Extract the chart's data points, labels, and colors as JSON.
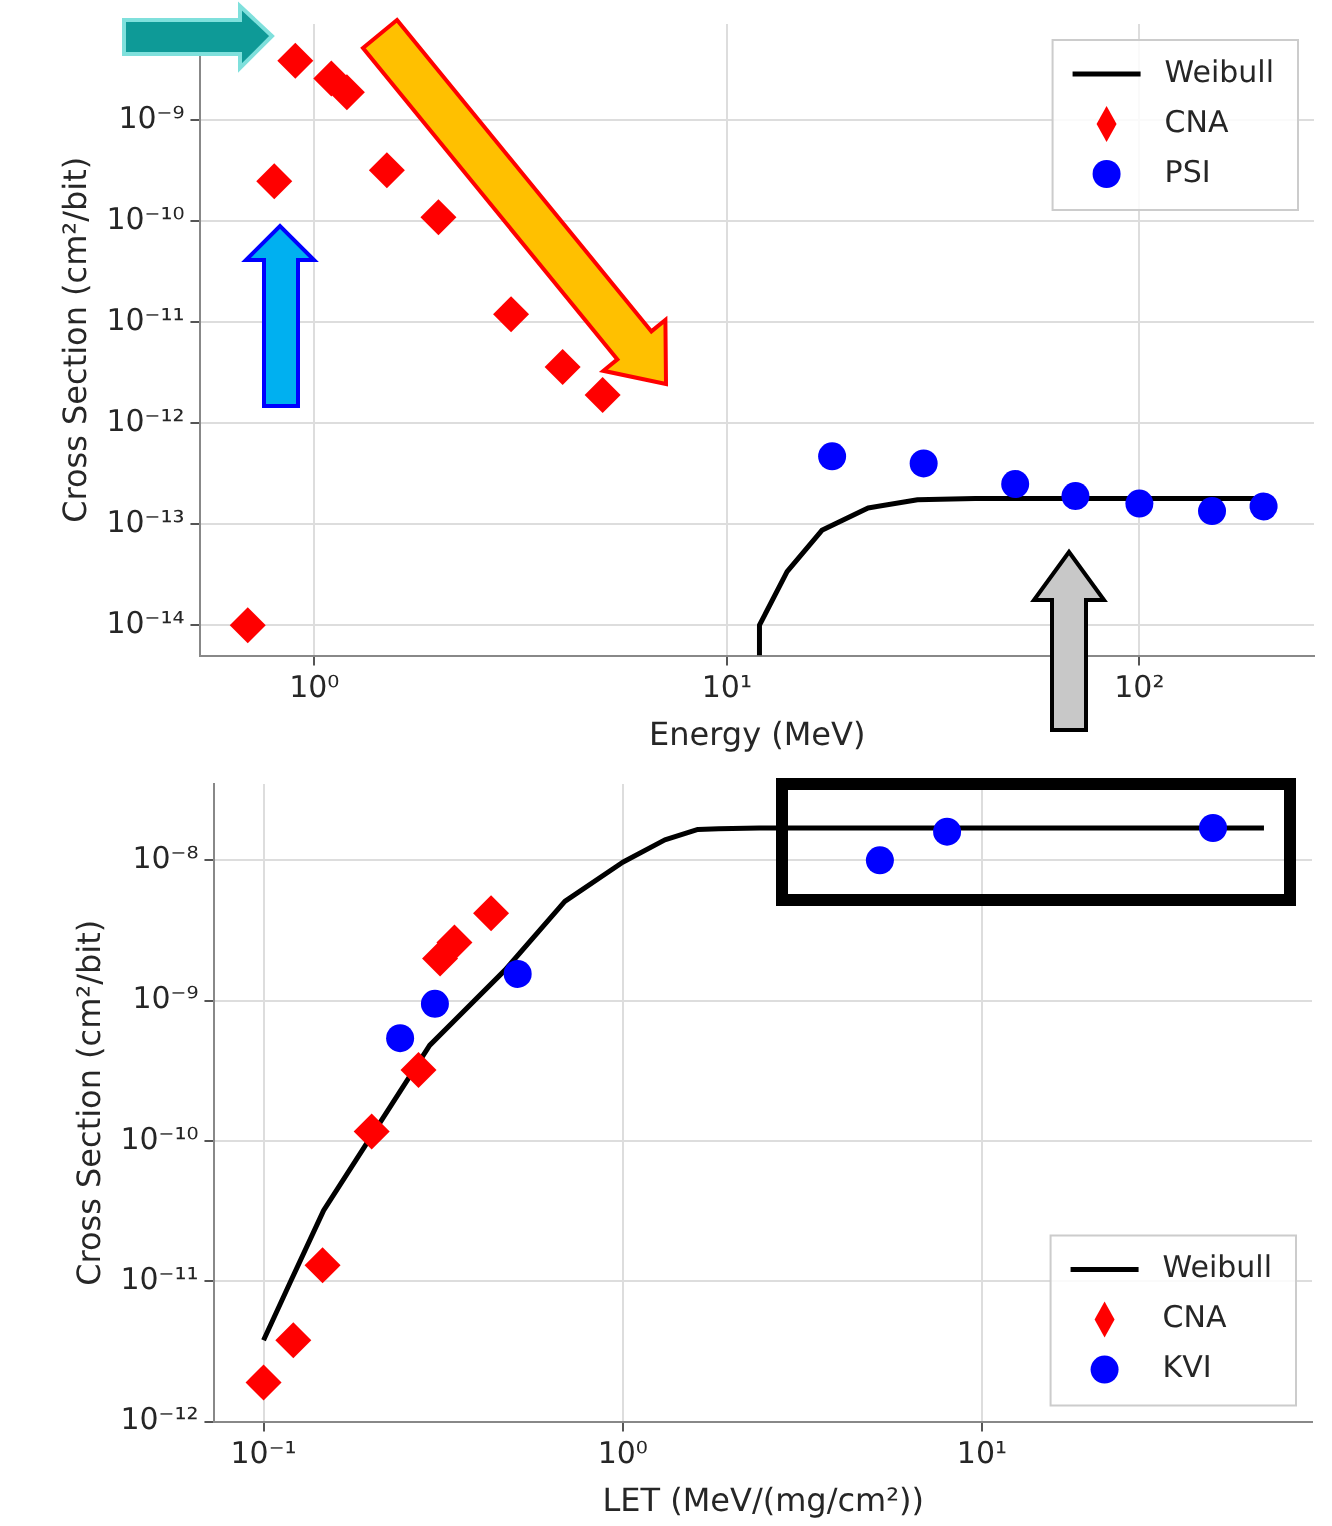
{
  "chart_data": [
    {
      "type": "scatter",
      "xlabel": "Energy (MeV)",
      "ylabel": "Cross Section (cm²/bit)",
      "log": "xy",
      "grid": true,
      "legend": "top right",
      "xlim": [
        0.53,
        265
      ],
      "xticks": [
        {
          "value": 1,
          "label": "10⁰"
        },
        {
          "value": 10,
          "label": "10¹"
        },
        {
          "value": 100,
          "label": "10²"
        }
      ],
      "ylim": [
        5e-15,
        9e-09
      ],
      "yticks": [
        {
          "value": 1e-14,
          "label": "10⁻¹⁴"
        },
        {
          "value": 1e-13,
          "label": "10⁻¹³"
        },
        {
          "value": 1e-12,
          "label": "10⁻¹²"
        },
        {
          "value": 1e-11,
          "label": "10⁻¹¹"
        },
        {
          "value": 1e-10,
          "label": "10⁻¹⁰"
        },
        {
          "value": 1e-09,
          "label": "10⁻⁹"
        }
      ],
      "series": [
        {
          "name": "Weibull",
          "type": "line",
          "color": "#000000",
          "marker": "none",
          "line_style": "solid",
          "x": [
            12,
            12,
            14,
            17,
            22,
            29,
            40,
            190
          ],
          "values": [
            5e-15,
            1e-14,
            3.4e-14,
            8.7e-14,
            1.45e-13,
            1.75e-13,
            1.8e-13,
            1.8e-13
          ]
        },
        {
          "name": "CNA",
          "type": "scatter",
          "color": "#ff0000",
          "marker": "diamond",
          "x": [
            0.69,
            0.8,
            0.9,
            1.1,
            1.2,
            1.5,
            2.0,
            3.0,
            4.0,
            5.0
          ],
          "values": [
            1e-14,
            2.5e-10,
            3.9e-09,
            2.6e-09,
            1.9e-09,
            3.2e-10,
            1.1e-10,
            1.2e-11,
            3.6e-12,
            1.9e-12
          ]
        },
        {
          "name": "PSI",
          "type": "scatter",
          "color": "#0000ff",
          "marker": "circle",
          "x": [
            18,
            30,
            50,
            70,
            100,
            150,
            200
          ],
          "values": [
            4.7e-13,
            4e-13,
            2.5e-13,
            1.9e-13,
            1.6e-13,
            1.35e-13,
            1.5e-13
          ]
        }
      ]
    },
    {
      "type": "scatter",
      "xlabel": "LET (MeV/(mg/cm²))",
      "ylabel": "Cross Section (cm²/bit)",
      "log": "xy",
      "grid": true,
      "legend": "bottom right",
      "xlim": [
        0.073,
        83
      ],
      "xticks": [
        {
          "value": 0.1,
          "label": "10⁻¹"
        },
        {
          "value": 1,
          "label": "10⁰"
        },
        {
          "value": 10,
          "label": "10¹"
        }
      ],
      "ylim": [
        1e-12,
        3.5e-08
      ],
      "yticks": [
        {
          "value": 1e-12,
          "label": "10⁻¹²"
        },
        {
          "value": 1e-11,
          "label": "10⁻¹¹"
        },
        {
          "value": 1e-10,
          "label": "10⁻¹⁰"
        },
        {
          "value": 1e-09,
          "label": "10⁻⁹"
        },
        {
          "value": 1e-08,
          "label": "10⁻⁸"
        }
      ],
      "series": [
        {
          "name": "Weibull",
          "type": "line",
          "color": "#000000",
          "marker": "none",
          "line_style": "solid",
          "x": [
            0.1,
            0.119,
            0.147,
            0.29,
            0.47,
            0.69,
            1.0,
            1.31,
            1.62,
            1.85,
            2.4,
            61
          ],
          "values": [
            3.8e-12,
            1e-11,
            3.2e-11,
            4.8e-10,
            1.65e-09,
            5.1e-09,
            9.7e-09,
            1.4e-08,
            1.66e-08,
            1.68e-08,
            1.7e-08,
            1.7e-08
          ]
        },
        {
          "name": "CNA",
          "type": "scatter",
          "color": "#ff0000",
          "marker": "diamond",
          "x": [
            0.1,
            0.121,
            0.146,
            0.2,
            0.27,
            0.31,
            0.34,
            0.43
          ],
          "values": [
            1.9e-12,
            3.8e-12,
            1.3e-11,
            1.17e-10,
            3.2e-10,
            2e-09,
            2.6e-09,
            4.2e-09
          ]
        },
        {
          "name": "KVI",
          "type": "scatter",
          "color": "#0000ff",
          "marker": "circle",
          "x": [
            0.24,
            0.3,
            0.51,
            5.2,
            8.0,
            44
          ],
          "values": [
            5.4e-10,
            9.5e-10,
            1.55e-09,
            1e-08,
            1.6e-08,
            1.7e-08
          ]
        }
      ]
    }
  ]
}
